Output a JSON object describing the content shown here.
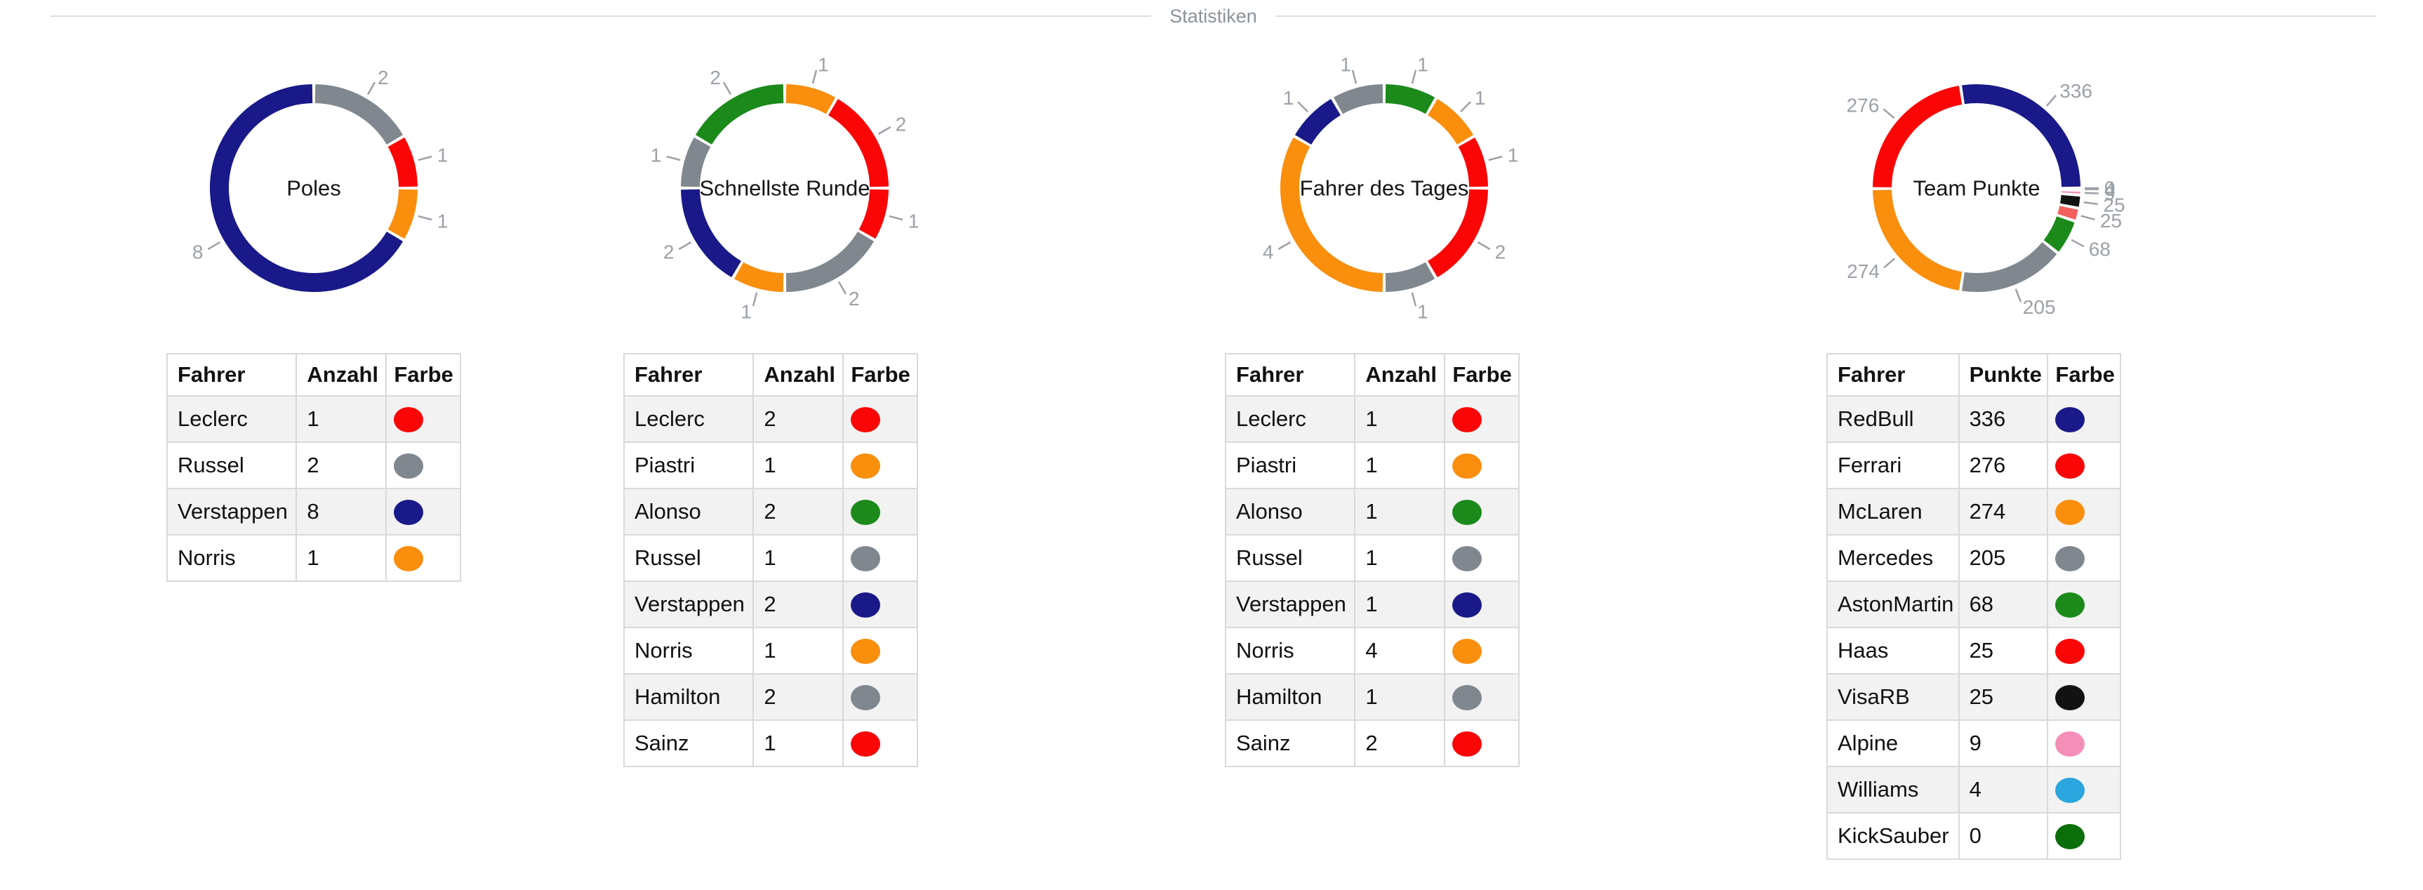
{
  "divider": {
    "label": "Statistiken"
  },
  "tables_common": {
    "driver_header": "Fahrer",
    "color_header": "Farbe"
  },
  "palette": {
    "red": "#fb0606",
    "orange": "#fa8e0d",
    "green": "#1b8a1b",
    "gray": "#80878f",
    "navy": "#191989",
    "black": "#121212",
    "pink": "#f48fb8",
    "cyan": "#2ba5de",
    "dark_green": "#0a6e0a",
    "haas_chart_salmon": "#f4615c",
    "label_gray": "#9ba1a7",
    "divider_line": "#dcdee1",
    "divider_text": "#8b9299",
    "table_border": "#d9d9d9",
    "zebra_row": "#f2f2f2",
    "title_text": "#151515"
  },
  "chart_data": [
    {
      "type": "pie",
      "donut": true,
      "title": "Poles",
      "value_header": "Anzahl",
      "start_angle": "east",
      "direction": "counterclockwise",
      "legend_position": "none",
      "entries": [
        {
          "label": "Leclerc",
          "value": 1,
          "color": "#fb0606"
        },
        {
          "label": "Russel",
          "value": 2,
          "color": "#80878f"
        },
        {
          "label": "Verstappen",
          "value": 8,
          "color": "#191989"
        },
        {
          "label": "Norris",
          "value": 1,
          "color": "#fa8e0d"
        }
      ]
    },
    {
      "type": "pie",
      "donut": true,
      "title": "Schnellste Runde",
      "value_header": "Anzahl",
      "start_angle": "east",
      "direction": "counterclockwise",
      "legend_position": "none",
      "entries": [
        {
          "label": "Leclerc",
          "value": 2,
          "color": "#fb0606"
        },
        {
          "label": "Piastri",
          "value": 1,
          "color": "#fa8e0d"
        },
        {
          "label": "Alonso",
          "value": 2,
          "color": "#1b8a1b"
        },
        {
          "label": "Russel",
          "value": 1,
          "color": "#80878f"
        },
        {
          "label": "Verstappen",
          "value": 2,
          "color": "#191989"
        },
        {
          "label": "Norris",
          "value": 1,
          "color": "#fa8e0d"
        },
        {
          "label": "Hamilton",
          "value": 2,
          "color": "#80878f"
        },
        {
          "label": "Sainz",
          "value": 1,
          "color": "#fb0606"
        }
      ]
    },
    {
      "type": "pie",
      "donut": true,
      "title": "Fahrer des Tages",
      "value_header": "Anzahl",
      "start_angle": "east",
      "direction": "counterclockwise",
      "legend_position": "none",
      "entries": [
        {
          "label": "Leclerc",
          "value": 1,
          "color": "#fb0606"
        },
        {
          "label": "Piastri",
          "value": 1,
          "color": "#fa8e0d"
        },
        {
          "label": "Alonso",
          "value": 1,
          "color": "#1b8a1b"
        },
        {
          "label": "Russel",
          "value": 1,
          "color": "#80878f"
        },
        {
          "label": "Verstappen",
          "value": 1,
          "color": "#191989"
        },
        {
          "label": "Norris",
          "value": 4,
          "color": "#fa8e0d"
        },
        {
          "label": "Hamilton",
          "value": 1,
          "color": "#80878f"
        },
        {
          "label": "Sainz",
          "value": 2,
          "color": "#fb0606"
        }
      ]
    },
    {
      "type": "pie",
      "donut": true,
      "title": "Team Punkte",
      "value_header": "Punkte",
      "start_angle": "east",
      "direction": "counterclockwise",
      "legend_position": "none",
      "entries": [
        {
          "label": "RedBull",
          "value": 336,
          "color": "#191989"
        },
        {
          "label": "Ferrari",
          "value": 276,
          "color": "#fb0606"
        },
        {
          "label": "McLaren",
          "value": 274,
          "color": "#fa8e0d"
        },
        {
          "label": "Mercedes",
          "value": 205,
          "color": "#80878f"
        },
        {
          "label": "AstonMartin",
          "value": 68,
          "color": "#1b8a1b"
        },
        {
          "label": "Haas",
          "value": 25,
          "color": "#fb0606",
          "chart_color": "#f4615c"
        },
        {
          "label": "VisaRB",
          "value": 25,
          "color": "#121212"
        },
        {
          "label": "Alpine",
          "value": 9,
          "color": "#f48fb8"
        },
        {
          "label": "Williams",
          "value": 4,
          "color": "#2ba5de"
        },
        {
          "label": "KickSauber",
          "value": 0,
          "color": "#0a6e0a"
        }
      ]
    }
  ]
}
